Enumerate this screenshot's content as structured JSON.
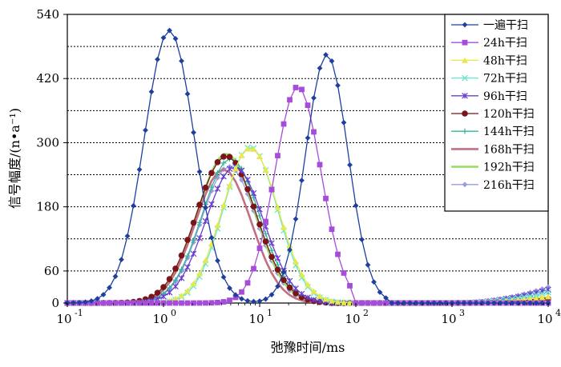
{
  "chart_data": {
    "type": "line",
    "xlabel": "弛豫时间/ms",
    "ylabel": "信号幅度/(n•a⁻¹)",
    "x_scale": "log",
    "xlim": [
      0.1,
      10000
    ],
    "ylim": [
      0,
      540
    ],
    "x_ticks": [
      {
        "value": 0.1,
        "base": "10",
        "exp": "-1"
      },
      {
        "value": 1,
        "base": "10",
        "exp": "0"
      },
      {
        "value": 10,
        "base": "10",
        "exp": "1"
      },
      {
        "value": 100,
        "base": "10",
        "exp": "2"
      },
      {
        "value": 1000,
        "base": "10",
        "exp": "3"
      },
      {
        "value": 10000,
        "base": "10",
        "exp": "4"
      }
    ],
    "y_ticks": [
      0,
      60,
      180,
      300,
      420,
      540
    ],
    "grid": "horizontal dotted every 60",
    "legend_position": "top-right",
    "series": [
      {
        "name": "一遍干扫",
        "color": "#1f3f9f",
        "marker": "diamond",
        "peaks": [
          {
            "x": 1.15,
            "y": 510,
            "w": 0.26
          },
          {
            "x": 50,
            "y": 465,
            "w": 0.22
          }
        ],
        "range": [
          0.1,
          230
        ],
        "tail": null
      },
      {
        "name": "24h干扫",
        "color": "#a64cdb",
        "marker": "square",
        "peaks": [
          {
            "x": 25,
            "y": 405,
            "w": 0.24
          }
        ],
        "range": [
          0.1,
          90
        ],
        "tail": null
      },
      {
        "name": "48h干扫",
        "color": "#e8e84a",
        "marker": "triangle",
        "peaks": [
          {
            "x": 8,
            "y": 290,
            "w": 0.29
          }
        ],
        "range": [
          0.1,
          75
        ],
        "tail": {
          "y": 12
        }
      },
      {
        "name": "72h干扫",
        "color": "#66e6cf",
        "marker": "x",
        "peaks": [
          {
            "x": 8,
            "y": 292,
            "w": 0.28
          }
        ],
        "range": [
          0.1,
          70
        ],
        "tail": {
          "y": 20
        }
      },
      {
        "name": "96h干扫",
        "color": "#6a3fd0",
        "marker": "star",
        "peaks": [
          {
            "x": 5.5,
            "y": 255,
            "w": 0.3
          }
        ],
        "range": [
          0.1,
          50
        ],
        "tail": {
          "y": 25
        }
      },
      {
        "name": "120h干扫",
        "color": "#7a1418",
        "marker": "circle",
        "peaks": [
          {
            "x": 4.5,
            "y": 275,
            "w": 0.31
          }
        ],
        "range": [
          0.1,
          55
        ],
        "tail": {
          "y": 8
        }
      },
      {
        "name": "144h干扫",
        "color": "#33b79a",
        "marker": "plus",
        "peaks": [
          {
            "x": 5,
            "y": 270,
            "w": 0.3
          }
        ],
        "range": [
          0.1,
          52
        ],
        "tail": {
          "y": 5
        }
      },
      {
        "name": "168h干扫",
        "color": "#c07080",
        "marker": "none",
        "peaks": [
          {
            "x": 4.2,
            "y": 250,
            "w": 0.29
          }
        ],
        "range": [
          0.1,
          45
        ],
        "tail": {
          "y": 5
        }
      },
      {
        "name": "192h干扫",
        "color": "#99dd66",
        "marker": "none",
        "peaks": [
          {
            "x": 4.5,
            "y": 280,
            "w": 0.3
          }
        ],
        "range": [
          0.1,
          55
        ],
        "tail": {
          "y": 10
        }
      },
      {
        "name": "216h干扫",
        "color": "#9a9ae0",
        "marker": "diamond",
        "peaks": [
          {
            "x": 4.8,
            "y": 255,
            "w": 0.29
          }
        ],
        "range": [
          0.1,
          50
        ],
        "tail": {
          "y": 30
        }
      }
    ]
  }
}
